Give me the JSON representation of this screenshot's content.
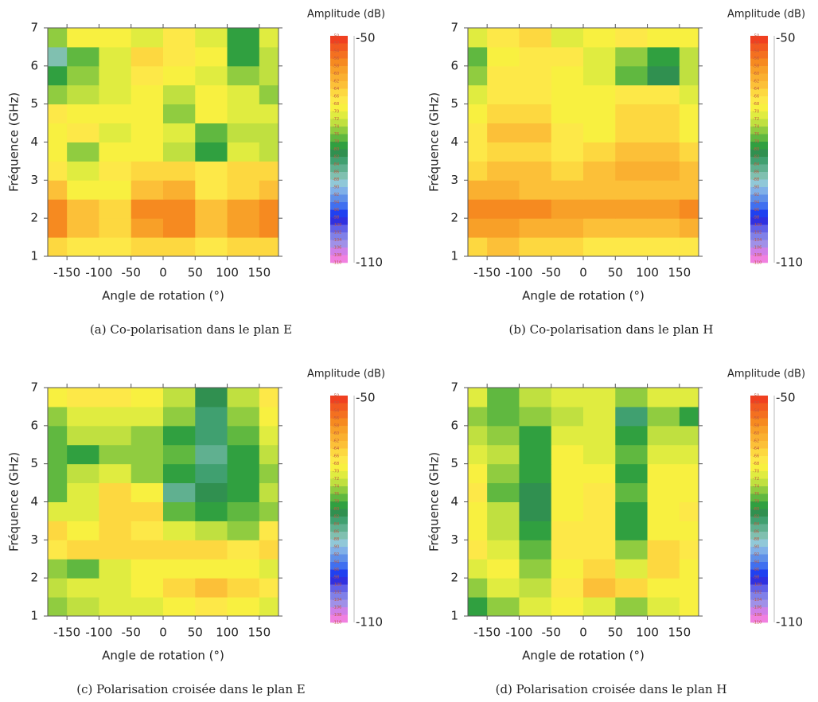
{
  "chart_data": [
    {
      "type": "heatmap",
      "caption": "(a) Co-polarisation dans le plan E",
      "x_label": "Angle de rotation (°)",
      "y_label": "Fréquence (GHz)",
      "colorbar_title": "Amplitude (dB)",
      "xlim": [
        -180,
        180
      ],
      "ylim": [
        1,
        7
      ],
      "xticks": [
        -150,
        -100,
        -50,
        0,
        50,
        100,
        150
      ],
      "yticks": [
        1,
        2,
        3,
        4,
        5,
        6,
        7
      ],
      "x": [
        -175,
        -125,
        -75,
        -25,
        25,
        75,
        125,
        175
      ],
      "y": [
        1.25,
        1.75,
        2.25,
        2.75,
        3.25,
        3.75,
        4.25,
        4.75,
        5.25,
        5.75,
        6.25,
        6.75
      ],
      "z": [
        [
          -66,
          -68,
          -68,
          -66,
          -66,
          -68,
          -66,
          -66
        ],
        [
          -58,
          -64,
          -66,
          -60,
          -58,
          -64,
          -60,
          -58
        ],
        [
          -58,
          -64,
          -66,
          -58,
          -58,
          -64,
          -60,
          -58
        ],
        [
          -64,
          -70,
          -70,
          -64,
          -62,
          -68,
          -66,
          -64
        ],
        [
          -68,
          -72,
          -68,
          -66,
          -66,
          -68,
          -66,
          -66
        ],
        [
          -70,
          -76,
          -70,
          -70,
          -74,
          -80,
          -72,
          -74
        ],
        [
          -70,
          -68,
          -72,
          -70,
          -72,
          -78,
          -74,
          -74
        ],
        [
          -68,
          -70,
          -70,
          -70,
          -76,
          -70,
          -72,
          -72
        ],
        [
          -76,
          -74,
          -72,
          -70,
          -74,
          -70,
          -72,
          -76
        ],
        [
          -80,
          -76,
          -72,
          -68,
          -70,
          -72,
          -76,
          -74
        ],
        [
          -88,
          -78,
          -72,
          -66,
          -68,
          -70,
          -80,
          -74
        ],
        [
          -76,
          -70,
          -70,
          -72,
          -68,
          -72,
          -80,
          -72
        ]
      ],
      "colorbar_range": [
        -50,
        -110
      ],
      "colorbar_levels": [
        -50,
        -52,
        -54,
        -56,
        -58,
        -60,
        -62,
        -64,
        -66,
        -68,
        -70,
        -72,
        -74,
        -76,
        -78,
        -80,
        -82,
        -84,
        -86,
        -88,
        -90,
        -92,
        -94,
        -96,
        -98,
        -100,
        -102,
        -104,
        -106,
        -108,
        -110
      ],
      "colorbar_colors": [
        "#f04020",
        "#f25a20",
        "#f47020",
        "#f68a20",
        "#f8a028",
        "#fab030",
        "#fcc038",
        "#fdd840",
        "#fde848",
        "#f8f040",
        "#e0ec40",
        "#c0e040",
        "#90cc40",
        "#60b840",
        "#30a040",
        "#309050",
        "#40a070",
        "#60b090",
        "#80c0b0",
        "#90c8d8",
        "#80b0e8",
        "#6090e8",
        "#4070f0",
        "#2040f0",
        "#3030e0",
        "#6060e8",
        "#8080e8",
        "#a090e8",
        "#d080e8",
        "#f080e0"
      ]
    },
    {
      "type": "heatmap",
      "caption": "(b) Co-polarisation dans le plan H",
      "x_label": "Angle de rotation (°)",
      "y_label": "Fréquence (GHz)",
      "colorbar_title": "Amplitude (dB)",
      "xlim": [
        -180,
        180
      ],
      "ylim": [
        1,
        7
      ],
      "xticks": [
        -150,
        -100,
        -50,
        0,
        50,
        100,
        150
      ],
      "yticks": [
        1,
        2,
        3,
        4,
        5,
        6,
        7
      ],
      "x": [
        -175,
        -125,
        -75,
        -25,
        25,
        75,
        125,
        175
      ],
      "y": [
        1.25,
        1.75,
        2.25,
        2.75,
        3.25,
        3.75,
        4.25,
        4.75,
        5.25,
        5.75,
        6.25,
        6.75
      ],
      "z": [
        [
          -66,
          -64,
          -66,
          -66,
          -68,
          -68,
          -68,
          -68
        ],
        [
          -60,
          -60,
          -62,
          -62,
          -64,
          -64,
          -64,
          -62
        ],
        [
          -58,
          -58,
          -58,
          -60,
          -60,
          -60,
          -60,
          -58
        ],
        [
          -62,
          -62,
          -64,
          -64,
          -64,
          -64,
          -64,
          -64
        ],
        [
          -66,
          -64,
          -64,
          -66,
          -64,
          -62,
          -62,
          -64
        ],
        [
          -68,
          -66,
          -66,
          -68,
          -66,
          -64,
          -64,
          -66
        ],
        [
          -68,
          -64,
          -64,
          -68,
          -70,
          -66,
          -66,
          -70
        ],
        [
          -70,
          -66,
          -66,
          -70,
          -70,
          -66,
          -66,
          -70
        ],
        [
          -72,
          -68,
          -68,
          -70,
          -70,
          -68,
          -68,
          -72
        ],
        [
          -76,
          -68,
          -68,
          -70,
          -72,
          -78,
          -82,
          -74
        ],
        [
          -78,
          -70,
          -68,
          -68,
          -72,
          -76,
          -80,
          -74
        ],
        [
          -72,
          -68,
          -66,
          -72,
          -70,
          -68,
          -70,
          -70
        ]
      ],
      "colorbar_range": [
        -50,
        -110
      ],
      "colorbar_levels": [
        -50,
        -52,
        -54,
        -56,
        -58,
        -60,
        -62,
        -64,
        -66,
        -68,
        -70,
        -72,
        -74,
        -76,
        -78,
        -80,
        -82,
        -84,
        -86,
        -88,
        -90,
        -92,
        -94,
        -96,
        -98,
        -100,
        -102,
        -104,
        -106,
        -108,
        -110
      ],
      "colorbar_colors": [
        "#f04020",
        "#f25a20",
        "#f47020",
        "#f68a20",
        "#f8a028",
        "#fab030",
        "#fcc038",
        "#fdd840",
        "#fde848",
        "#f8f040",
        "#e0ec40",
        "#c0e040",
        "#90cc40",
        "#60b840",
        "#30a040",
        "#309050",
        "#40a070",
        "#60b090",
        "#80c0b0",
        "#90c8d8",
        "#80b0e8",
        "#6090e8",
        "#4070f0",
        "#2040f0",
        "#3030e0",
        "#6060e8",
        "#8080e8",
        "#a090e8",
        "#d080e8",
        "#f080e0"
      ]
    },
    {
      "type": "heatmap",
      "caption": "(c) Polarisation croisée dans le plan E",
      "x_label": "Angle de rotation (°)",
      "y_label": "Fréquence (GHz)",
      "colorbar_title": "Amplitude (dB)",
      "xlim": [
        -180,
        180
      ],
      "ylim": [
        1,
        7
      ],
      "xticks": [
        -150,
        -100,
        -50,
        0,
        50,
        100,
        150
      ],
      "yticks": [
        1,
        2,
        3,
        4,
        5,
        6,
        7
      ],
      "x": [
        -175,
        -125,
        -75,
        -25,
        25,
        75,
        125,
        175
      ],
      "y": [
        1.25,
        1.75,
        2.25,
        2.75,
        3.25,
        3.75,
        4.25,
        4.75,
        5.25,
        5.75,
        6.25,
        6.75
      ],
      "z": [
        [
          -76,
          -74,
          -72,
          -72,
          -70,
          -68,
          -70,
          -72
        ],
        [
          -74,
          -72,
          -72,
          -70,
          -66,
          -64,
          -66,
          -68
        ],
        [
          -76,
          -78,
          -72,
          -70,
          -70,
          -70,
          -70,
          -72
        ],
        [
          -68,
          -66,
          -66,
          -66,
          -66,
          -66,
          -68,
          -66
        ],
        [
          -66,
          -70,
          -66,
          -68,
          -72,
          -74,
          -76,
          -68
        ],
        [
          -72,
          -72,
          -66,
          -66,
          -78,
          -80,
          -78,
          -76
        ],
        [
          -78,
          -72,
          -66,
          -70,
          -86,
          -82,
          -80,
          -74
        ],
        [
          -78,
          -74,
          -72,
          -76,
          -80,
          -84,
          -80,
          -76
        ],
        [
          -78,
          -80,
          -76,
          -76,
          -78,
          -86,
          -80,
          -74
        ],
        [
          -78,
          -74,
          -74,
          -76,
          -80,
          -84,
          -78,
          -72
        ],
        [
          -76,
          -72,
          -72,
          -72,
          -76,
          -84,
          -76,
          -70
        ],
        [
          -70,
          -68,
          -68,
          -70,
          -74,
          -82,
          -74,
          -68
        ]
      ],
      "colorbar_range": [
        -50,
        -110
      ],
      "colorbar_levels": [
        -50,
        -52,
        -54,
        -56,
        -58,
        -60,
        -62,
        -64,
        -66,
        -68,
        -70,
        -72,
        -74,
        -76,
        -78,
        -80,
        -82,
        -84,
        -86,
        -88,
        -90,
        -92,
        -94,
        -96,
        -98,
        -100,
        -102,
        -104,
        -106,
        -108,
        -110
      ],
      "colorbar_colors": [
        "#f04020",
        "#f25a20",
        "#f47020",
        "#f68a20",
        "#f8a028",
        "#fab030",
        "#fcc038",
        "#fdd840",
        "#fde848",
        "#f8f040",
        "#e0ec40",
        "#c0e040",
        "#90cc40",
        "#60b840",
        "#30a040",
        "#309050",
        "#40a070",
        "#60b090",
        "#80c0b0",
        "#90c8d8",
        "#80b0e8",
        "#6090e8",
        "#4070f0",
        "#2040f0",
        "#3030e0",
        "#6060e8",
        "#8080e8",
        "#a090e8",
        "#d080e8",
        "#f080e0"
      ]
    },
    {
      "type": "heatmap",
      "caption": "(d) Polarisation croisée dans le plan H",
      "x_label": "Angle de rotation (°)",
      "y_label": "Fréquence (GHz)",
      "colorbar_title": "Amplitude (dB)",
      "xlim": [
        -180,
        180
      ],
      "ylim": [
        1,
        7
      ],
      "xticks": [
        -150,
        -100,
        -50,
        0,
        50,
        100,
        150
      ],
      "yticks": [
        1,
        2,
        3,
        4,
        5,
        6,
        7
      ],
      "x": [
        -175,
        -125,
        -75,
        -25,
        25,
        75,
        125,
        175
      ],
      "y": [
        1.25,
        1.75,
        2.25,
        2.75,
        3.25,
        3.75,
        4.25,
        4.75,
        5.25,
        5.75,
        6.25,
        6.75
      ],
      "z": [
        [
          -80,
          -76,
          -72,
          -70,
          -72,
          -76,
          -72,
          -70
        ],
        [
          -76,
          -72,
          -74,
          -68,
          -64,
          -66,
          -70,
          -70
        ],
        [
          -72,
          -70,
          -76,
          -70,
          -66,
          -72,
          -66,
          -70
        ],
        [
          -68,
          -72,
          -78,
          -68,
          -68,
          -76,
          -66,
          -68
        ],
        [
          -70,
          -74,
          -80,
          -68,
          -68,
          -80,
          -70,
          -70
        ],
        [
          -70,
          -74,
          -82,
          -70,
          -68,
          -80,
          -70,
          -68
        ],
        [
          -68,
          -78,
          -82,
          -70,
          -68,
          -78,
          -70,
          -70
        ],
        [
          -70,
          -76,
          -80,
          -70,
          -70,
          -80,
          -70,
          -70
        ],
        [
          -72,
          -74,
          -80,
          -70,
          -72,
          -78,
          -72,
          -72
        ],
        [
          -74,
          -76,
          -80,
          -72,
          -72,
          -80,
          -74,
          -74
        ],
        [
          -76,
          -78,
          -76,
          -74,
          -72,
          -84,
          -76,
          -80
        ],
        [
          -72,
          -78,
          -74,
          -72,
          -72,
          -76,
          -72,
          -72
        ]
      ],
      "colorbar_range": [
        -50,
        -110
      ],
      "colorbar_levels": [
        -50,
        -52,
        -54,
        -56,
        -58,
        -60,
        -62,
        -64,
        -66,
        -68,
        -70,
        -72,
        -74,
        -76,
        -78,
        -80,
        -82,
        -84,
        -86,
        -88,
        -90,
        -92,
        -94,
        -96,
        -98,
        -100,
        -102,
        -104,
        -106,
        -108,
        -110
      ],
      "colorbar_colors": [
        "#f04020",
        "#f25a20",
        "#f47020",
        "#f68a20",
        "#f8a028",
        "#fab030",
        "#fcc038",
        "#fdd840",
        "#fde848",
        "#f8f040",
        "#e0ec40",
        "#c0e040",
        "#90cc40",
        "#60b840",
        "#30a040",
        "#309050",
        "#40a070",
        "#60b090",
        "#80c0b0",
        "#90c8d8",
        "#80b0e8",
        "#6090e8",
        "#4070f0",
        "#2040f0",
        "#3030e0",
        "#6060e8",
        "#8080e8",
        "#a090e8",
        "#d080e8",
        "#f080e0"
      ]
    }
  ]
}
